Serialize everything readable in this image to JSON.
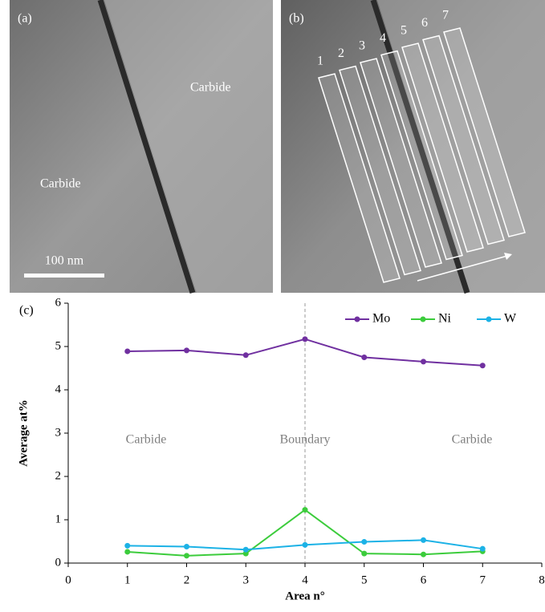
{
  "images": {
    "a": {
      "label": "(a)",
      "regions": [
        "Carbide",
        "Carbide"
      ],
      "scale_bar": "100 nm"
    },
    "b": {
      "label": "(b)",
      "areas": [
        "1",
        "2",
        "3",
        "4",
        "5",
        "6",
        "7"
      ]
    }
  },
  "chart_data": {
    "type": "line",
    "panel_label": "(c)",
    "x_label": "Area n°",
    "y_label": "Average at%",
    "x": [
      1,
      2,
      3,
      4,
      5,
      6,
      7
    ],
    "series": [
      {
        "name": "Mo",
        "color": "#7030a0",
        "values": [
          4.89,
          4.91,
          4.8,
          5.17,
          4.75,
          4.65,
          4.56
        ]
      },
      {
        "name": "Ni",
        "color": "#3ccc3c",
        "values": [
          0.26,
          0.17,
          0.22,
          1.23,
          0.22,
          0.2,
          0.27
        ]
      },
      {
        "name": "W",
        "color": "#1cb2e6",
        "values": [
          0.4,
          0.38,
          0.31,
          0.42,
          0.49,
          0.53,
          0.33
        ]
      }
    ],
    "annotations": [
      "Carbide",
      "Boundary",
      "Carbide"
    ],
    "xlim": [
      0,
      8
    ],
    "xticks": [
      0,
      1,
      2,
      3,
      4,
      5,
      6,
      7,
      8
    ],
    "ylim": [
      0,
      6
    ],
    "yticks": [
      0,
      1,
      2,
      3,
      4,
      5,
      6
    ],
    "grid": false,
    "legend": "top-right"
  }
}
